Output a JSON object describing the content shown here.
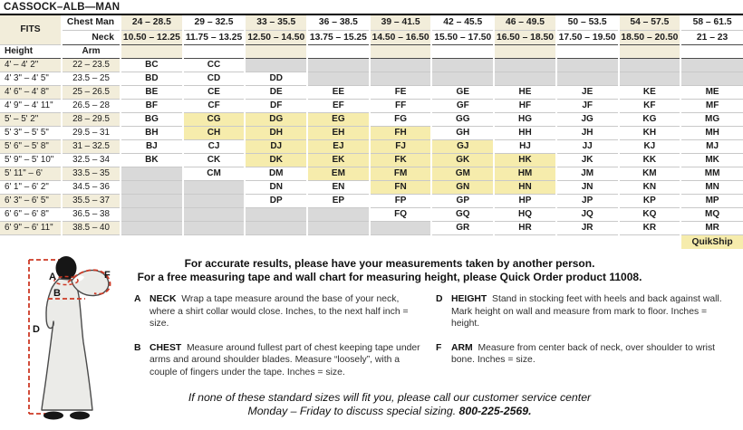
{
  "title": "CASSOCK–ALB—MAN",
  "table": {
    "fits_label": "FITS",
    "chest_row_label": "Chest Man",
    "neck_row_label": "Neck",
    "height_col_label": "Height",
    "arm_col_label": "Arm",
    "quikship_label": "QuikShip",
    "columns": [
      {
        "chest": "24 – 28.5",
        "neck": "10.50 – 12.25"
      },
      {
        "chest": "29 – 32.5",
        "neck": "11.75 – 13.25"
      },
      {
        "chest": "33 – 35.5",
        "neck": "12.50 – 14.50"
      },
      {
        "chest": "36 – 38.5",
        "neck": "13.75 – 15.25"
      },
      {
        "chest": "39 – 41.5",
        "neck": "14.50 – 16.50"
      },
      {
        "chest": "42 – 45.5",
        "neck": "15.50 – 17.50"
      },
      {
        "chest": "46 – 49.5",
        "neck": "16.50 – 18.50"
      },
      {
        "chest": "50 – 53.5",
        "neck": "17.50 – 19.50"
      },
      {
        "chest": "54 – 57.5",
        "neck": "18.50 – 20.50"
      },
      {
        "chest": "58 – 61.5",
        "neck": "21 – 23"
      }
    ],
    "rows": [
      {
        "height": "4' – 4' 2\"",
        "arm": "22 – 23.5",
        "cells": [
          "BC",
          "CC",
          "",
          "",
          "",
          "",
          "",
          "",
          "",
          ""
        ]
      },
      {
        "height": "4' 3\" – 4' 5\"",
        "arm": "23.5 – 25",
        "cells": [
          "BD",
          "CD",
          "DD",
          "",
          "",
          "",
          "",
          "",
          "",
          ""
        ]
      },
      {
        "height": "4' 6\" – 4' 8\"",
        "arm": "25 – 26.5",
        "cells": [
          "BE",
          "CE",
          "DE",
          "EE",
          "FE",
          "GE",
          "HE",
          "JE",
          "KE",
          "ME"
        ]
      },
      {
        "height": "4' 9\" – 4' 11\"",
        "arm": "26.5 – 28",
        "cells": [
          "BF",
          "CF",
          "DF",
          "EF",
          "FF",
          "GF",
          "HF",
          "JF",
          "KF",
          "MF"
        ]
      },
      {
        "height": "5' – 5' 2\"",
        "arm": "28 – 29.5",
        "cells": [
          "BG",
          "CG",
          "DG",
          "EG",
          "FG",
          "GG",
          "HG",
          "JG",
          "KG",
          "MG"
        ]
      },
      {
        "height": "5' 3\" – 5' 5\"",
        "arm": "29.5 – 31",
        "cells": [
          "BH",
          "CH",
          "DH",
          "EH",
          "FH",
          "GH",
          "HH",
          "JH",
          "KH",
          "MH"
        ]
      },
      {
        "height": "5' 6\" – 5' 8\"",
        "arm": "31 – 32.5",
        "cells": [
          "BJ",
          "CJ",
          "DJ",
          "EJ",
          "FJ",
          "GJ",
          "HJ",
          "JJ",
          "KJ",
          "MJ"
        ]
      },
      {
        "height": "5' 9\" – 5' 10\"",
        "arm": "32.5 – 34",
        "cells": [
          "BK",
          "CK",
          "DK",
          "EK",
          "FK",
          "GK",
          "HK",
          "JK",
          "KK",
          "MK"
        ]
      },
      {
        "height": "5' 11\" – 6'",
        "arm": "33.5 – 35",
        "cells": [
          "",
          "CM",
          "DM",
          "EM",
          "FM",
          "GM",
          "HM",
          "JM",
          "KM",
          "MM"
        ]
      },
      {
        "height": "6' 1\" – 6' 2\"",
        "arm": "34.5 – 36",
        "cells": [
          "",
          "",
          "DN",
          "EN",
          "FN",
          "GN",
          "HN",
          "JN",
          "KN",
          "MN"
        ]
      },
      {
        "height": "6' 3\" – 6' 5\"",
        "arm": "35.5 – 37",
        "cells": [
          "",
          "",
          "DP",
          "EP",
          "FP",
          "GP",
          "HP",
          "JP",
          "KP",
          "MP"
        ]
      },
      {
        "height": "6' 6\" – 6' 8\"",
        "arm": "36.5 – 38",
        "cells": [
          "",
          "",
          "",
          "",
          "FQ",
          "GQ",
          "HQ",
          "JQ",
          "KQ",
          "MQ"
        ]
      },
      {
        "height": "6' 9\" – 6' 11\"",
        "arm": "38.5 – 40",
        "cells": [
          "",
          "",
          "",
          "",
          "",
          "GR",
          "HR",
          "JR",
          "KR",
          "MR"
        ]
      }
    ],
    "quikship_highlighted_sizes": [
      "CG",
      "DG",
      "EG",
      "CH",
      "DH",
      "EH",
      "FH",
      "DJ",
      "EJ",
      "FJ",
      "GJ",
      "DK",
      "EK",
      "FK",
      "GK",
      "HK",
      "EM",
      "FM",
      "GM",
      "HM",
      "FN",
      "GN",
      "HN"
    ]
  },
  "intro": {
    "line1": "For accurate results, please have your measurements taken by another person.",
    "line2": "For a free measuring tape and wall chart for measuring height, please Quick Order product 11008."
  },
  "measurements": [
    {
      "key": "A",
      "term": "NECK",
      "text": "Wrap a tape measure around the base of your neck, where a shirt collar would close. Inches, to the next half inch = size."
    },
    {
      "key": "B",
      "term": "CHEST",
      "text": "Measure around fullest part of chest keeping tape under arms and around shoulder blades. Measure “loosely”, with a couple of fingers under the tape. Inches = size."
    },
    {
      "key": "D",
      "term": "HEIGHT",
      "text": "Stand in stocking feet with heels and back against wall. Mark height on wall and measure from mark to floor. Inches = height."
    },
    {
      "key": "F",
      "term": "ARM",
      "text": "Measure from center back of neck, over shoulder to wrist bone. Inches = size."
    }
  ],
  "footer": {
    "line1": "If none of these standard sizes will fit you, please call our customer service center",
    "line2_prefix": "Monday – Friday to discuss special sizing. ",
    "phone": "800-225-2569."
  },
  "diagram": {
    "labels": {
      "a": "A",
      "b": "B",
      "d": "D",
      "f": "F"
    }
  },
  "colors": {
    "cream": "#f2edda",
    "quikship_yellow": "#f6ecac",
    "unavailable_gray": "#d9d9d9",
    "diagram_red": "#cd3a26"
  }
}
